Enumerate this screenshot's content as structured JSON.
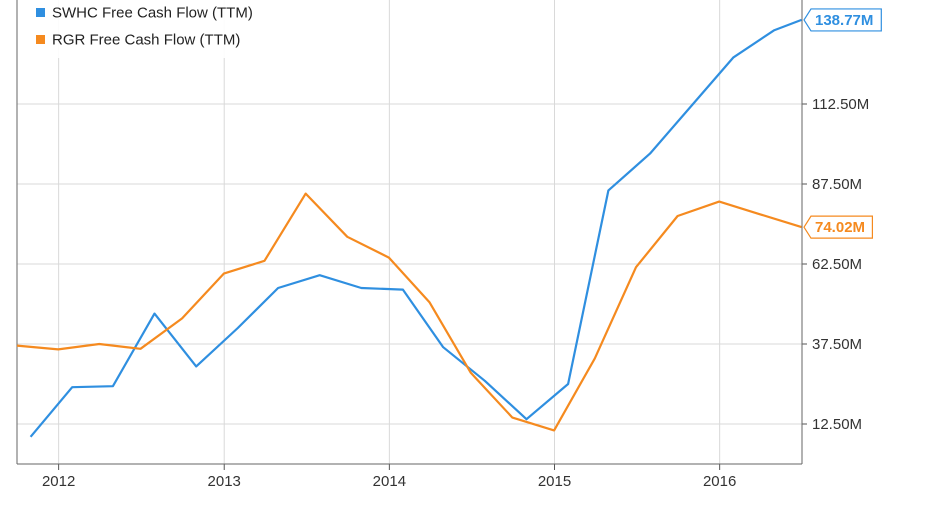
{
  "chart_data": {
    "type": "line",
    "title": "",
    "xlabel": "",
    "ylabel": "",
    "x_ticks": [
      "2012",
      "2013",
      "2014",
      "2015",
      "2016"
    ],
    "y_ticks": [
      "12.50M",
      "37.50M",
      "62.50M",
      "87.50M",
      "112.50M"
    ],
    "y_tick_values": [
      12.5,
      37.5,
      62.5,
      87.5,
      112.5
    ],
    "xlim": [
      "2011-10-01",
      "2016-07-01"
    ],
    "ylim": [
      0,
      145
    ],
    "grid": true,
    "legend_position": "top-left",
    "series": [
      {
        "name": "SWHC Free Cash Flow (TTM)",
        "color": "#2f8fe0",
        "end_label": "138.77M",
        "points": [
          [
            "2011-10-31",
            8.5
          ],
          [
            "2012-01-31",
            24.0
          ],
          [
            "2012-04-30",
            24.3
          ],
          [
            "2012-07-31",
            47.0
          ],
          [
            "2012-10-31",
            30.5
          ],
          [
            "2013-01-31",
            42.5
          ],
          [
            "2013-04-30",
            55.0
          ],
          [
            "2013-07-31",
            59.0
          ],
          [
            "2013-10-31",
            55.0
          ],
          [
            "2014-01-31",
            54.5
          ],
          [
            "2014-04-30",
            36.5
          ],
          [
            "2014-07-31",
            26.0
          ],
          [
            "2014-10-31",
            14.0
          ],
          [
            "2015-01-31",
            25.0
          ],
          [
            "2015-04-30",
            85.5
          ],
          [
            "2015-07-31",
            97.0
          ],
          [
            "2015-10-31",
            112.0
          ],
          [
            "2016-01-31",
            127.0
          ],
          [
            "2016-04-30",
            135.5
          ],
          [
            "2016-06-30",
            138.77
          ]
        ]
      },
      {
        "name": "RGR Free Cash Flow (TTM)",
        "color": "#f58a1f",
        "end_label": "74.02M",
        "points": [
          [
            "2011-10-01",
            37.0
          ],
          [
            "2011-12-31",
            35.8
          ],
          [
            "2012-03-31",
            37.5
          ],
          [
            "2012-06-30",
            36.0
          ],
          [
            "2012-09-30",
            45.5
          ],
          [
            "2012-12-31",
            59.5
          ],
          [
            "2013-03-31",
            63.5
          ],
          [
            "2013-06-30",
            84.5
          ],
          [
            "2013-09-30",
            71.0
          ],
          [
            "2013-12-31",
            64.5
          ],
          [
            "2014-03-31",
            50.5
          ],
          [
            "2014-06-30",
            28.5
          ],
          [
            "2014-09-30",
            14.5
          ],
          [
            "2014-12-31",
            10.5
          ],
          [
            "2015-03-31",
            33.0
          ],
          [
            "2015-06-30",
            61.5
          ],
          [
            "2015-09-30",
            77.5
          ],
          [
            "2015-12-31",
            82.0
          ],
          [
            "2016-03-31",
            78.0
          ],
          [
            "2016-06-30",
            74.02
          ]
        ]
      }
    ]
  }
}
